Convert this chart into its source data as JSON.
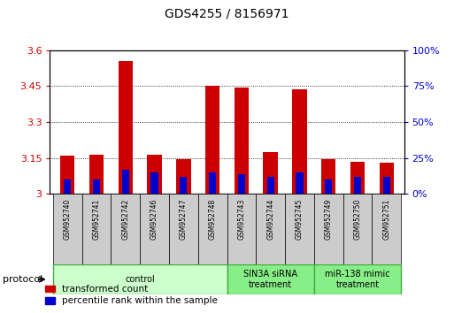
{
  "title": "GDS4255 / 8156971",
  "samples": [
    "GSM952740",
    "GSM952741",
    "GSM952742",
    "GSM952746",
    "GSM952747",
    "GSM952748",
    "GSM952743",
    "GSM952744",
    "GSM952745",
    "GSM952749",
    "GSM952750",
    "GSM952751"
  ],
  "transformed_count": [
    3.162,
    3.165,
    3.555,
    3.165,
    3.145,
    3.45,
    3.445,
    3.175,
    3.435,
    3.145,
    3.133,
    3.13
  ],
  "percentile_rank": [
    10,
    10,
    17,
    15,
    12,
    15,
    14,
    12,
    15,
    10,
    12,
    12
  ],
  "ylim_left": [
    3.0,
    3.6
  ],
  "ylim_right": [
    0,
    100
  ],
  "yticks_left": [
    3.0,
    3.15,
    3.3,
    3.45,
    3.6
  ],
  "yticks_right": [
    0,
    25,
    50,
    75,
    100
  ],
  "ytick_labels_left": [
    "3",
    "3.15",
    "3.3",
    "3.45",
    "3.6"
  ],
  "ytick_labels_right": [
    "0%",
    "25%",
    "50%",
    "75%",
    "100%"
  ],
  "groups": [
    {
      "label": "control",
      "start": 0,
      "end": 5,
      "color": "#ccffcc",
      "edge_color": "#44aa44"
    },
    {
      "label": "SIN3A siRNA\ntreatment",
      "start": 6,
      "end": 8,
      "color": "#88ee88",
      "edge_color": "#44aa44"
    },
    {
      "label": "miR-138 mimic\ntreatment",
      "start": 9,
      "end": 11,
      "color": "#88ee88",
      "edge_color": "#44aa44"
    }
  ],
  "bar_color_red": "#cc0000",
  "bar_color_blue": "#0000cc",
  "bar_width": 0.5,
  "ylabel_left_color": "#cc0000",
  "ylabel_right_color": "#0000cc",
  "grid_color": "#000000",
  "label_cell_bg": "#cccccc",
  "base_value": 3.0
}
